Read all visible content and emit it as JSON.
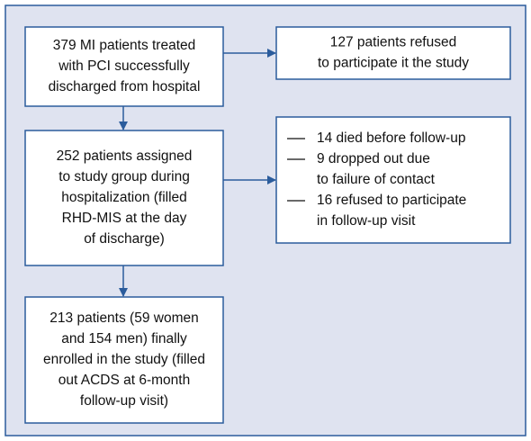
{
  "nodes": [
    {
      "lines": [
        "379 MI patients treated",
        "with PCI successfully",
        "discharged from hospital"
      ]
    },
    {
      "lines": [
        "127 patients refused",
        "to participate it the study"
      ]
    },
    {
      "lines": [
        "252 patients assigned",
        "to study group during",
        "hospitalization (filled",
        "RHD-MIS at the day",
        "of discharge)"
      ]
    },
    {
      "items": [
        {
          "lines": [
            "14 died before follow-up"
          ]
        },
        {
          "lines": [
            "9 dropped out due",
            "to failure of contact"
          ]
        },
        {
          "lines": [
            "16 refused to participate",
            "in follow-up visit"
          ]
        }
      ]
    },
    {
      "lines": [
        "213 patients (59 women",
        "and 154 men) finally",
        "enrolled in the study (filled",
        "out ACDS at 6-month",
        "follow-up visit)"
      ]
    }
  ]
}
